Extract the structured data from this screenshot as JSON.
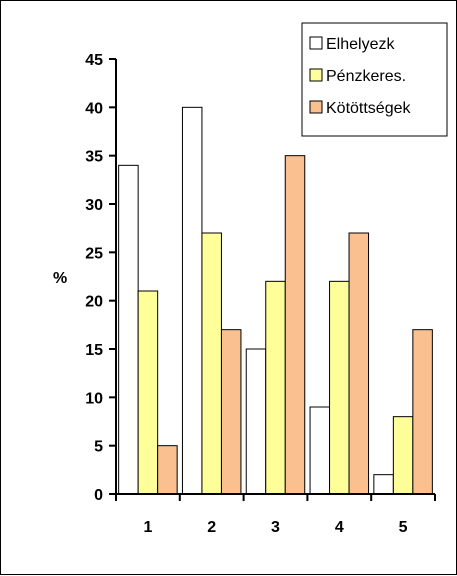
{
  "chart_data": {
    "type": "bar",
    "categories": [
      "1",
      "2",
      "3",
      "4",
      "5"
    ],
    "series": [
      {
        "name": "Elhelyezk",
        "values": [
          34,
          40,
          15,
          9,
          2
        ],
        "color": "#ffffff"
      },
      {
        "name": "Pénzkeres.",
        "values": [
          21,
          27,
          22,
          22,
          8
        ],
        "color": "#ffff99"
      },
      {
        "name": "Kötöttségek",
        "values": [
          5,
          17,
          35,
          27,
          17
        ],
        "color": "#fac090"
      }
    ],
    "title": "",
    "xlabel": "",
    "ylabel": "%",
    "ylim": [
      0,
      45
    ],
    "yticks": [
      0,
      5,
      10,
      15,
      20,
      25,
      30,
      35,
      40,
      45
    ],
    "grid": false,
    "legend_position": "top-right"
  }
}
